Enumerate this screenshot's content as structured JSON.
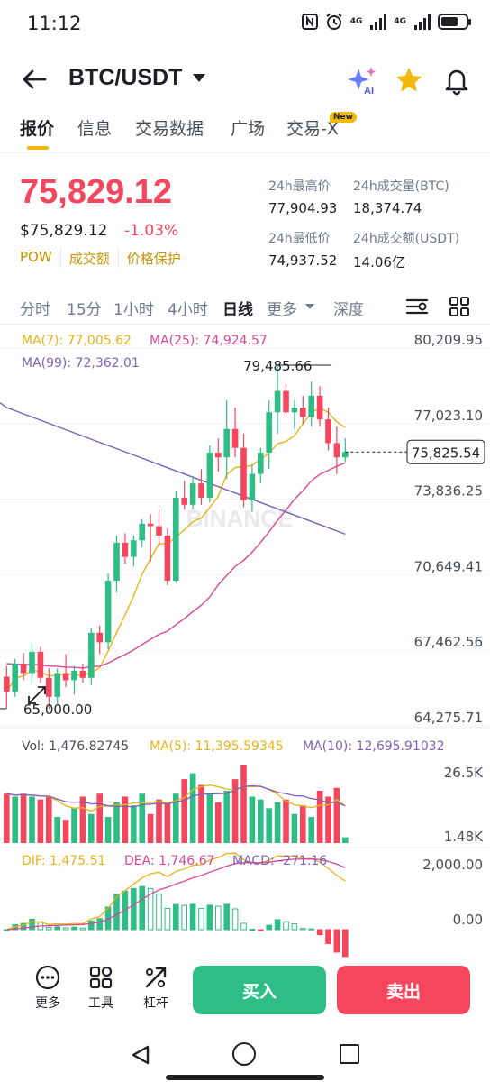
{
  "status_bar": {
    "time": "11:12",
    "signal_1": "4G",
    "signal_2": "4G"
  },
  "header": {
    "pair": "BTC/USDT",
    "ai_label": "AI"
  },
  "tabs": [
    {
      "label": "报价",
      "active": true
    },
    {
      "label": "信息"
    },
    {
      "label": "交易数据"
    },
    {
      "label": "广场"
    },
    {
      "label": "交易-X",
      "badge": "New"
    }
  ],
  "price": {
    "last": "75,829.12",
    "usd": "$75,829.12",
    "change": "-1.03%",
    "tags": [
      "POW",
      "成交额",
      "价格保护"
    ]
  },
  "stats": {
    "high_label": "24h最高价",
    "high_value": "77,904.93",
    "vol_btc_label": "24h成交量(BTC)",
    "vol_btc_value": "18,374.74",
    "low_label": "24h最低价",
    "low_value": "74,937.52",
    "vol_usdt_label": "24h成交额(USDT)",
    "vol_usdt_value": "14.06亿"
  },
  "intervals": [
    {
      "label": "分时"
    },
    {
      "label": "15分"
    },
    {
      "label": "1小时"
    },
    {
      "label": "4小时"
    },
    {
      "label": "日线",
      "active": true
    },
    {
      "label": "更多"
    },
    {
      "label": "深度"
    }
  ],
  "chart_data": {
    "type": "candlestick",
    "watermark": "BINANCE",
    "ma_legend": {
      "ma7": "MA(7): 77,005.62",
      "ma25": "MA(25): 74,924.57",
      "ma99": "MA(99): 72,362.01"
    },
    "y_axis_labels": [
      "80,209.95",
      "77,023.10",
      "73,836.25",
      "70,649.41",
      "67,462.56",
      "64,275.71"
    ],
    "y_axis_values": [
      80209.95,
      77023.1,
      73836.25,
      70649.41,
      67462.56,
      64275.71
    ],
    "current_price_label": "75,825.54",
    "current_price": 75825.54,
    "high_marker": {
      "label": "79,485.66",
      "value": 79485.66
    },
    "low_marker": {
      "label": "65,000.00",
      "value": 65000.0
    },
    "candles": [
      [
        66350,
        66800,
        65000,
        65700
      ],
      [
        65700,
        67100,
        65500,
        66900
      ],
      [
        66900,
        67350,
        66200,
        66500
      ],
      [
        66500,
        67800,
        66000,
        67400
      ],
      [
        67400,
        67600,
        66100,
        66300
      ],
      [
        66300,
        66700,
        65000,
        65500
      ],
      [
        65500,
        66700,
        65200,
        66500
      ],
      [
        66500,
        67300,
        65900,
        66200
      ],
      [
        66200,
        66800,
        65600,
        66600
      ],
      [
        66600,
        66900,
        66100,
        66300
      ],
      [
        66300,
        68400,
        66000,
        68200
      ],
      [
        68200,
        68500,
        67300,
        67800
      ],
      [
        67800,
        70700,
        67500,
        70400
      ],
      [
        70400,
        72300,
        69900,
        72000
      ],
      [
        72000,
        72400,
        71100,
        71400
      ],
      [
        71400,
        72300,
        71000,
        72100
      ],
      [
        72100,
        73000,
        71800,
        72800
      ],
      [
        72800,
        73200,
        71200,
        72700
      ],
      [
        72700,
        73400,
        71900,
        72300
      ],
      [
        72300,
        72600,
        70200,
        70400
      ],
      [
        70400,
        74200,
        70300,
        73900
      ],
      [
        73900,
        74600,
        73400,
        73600
      ],
      [
        73600,
        74800,
        73400,
        74500
      ],
      [
        74500,
        75100,
        73600,
        73900
      ],
      [
        73900,
        76100,
        73700,
        75800
      ],
      [
        75800,
        76400,
        75000,
        75600
      ],
      [
        75600,
        78000,
        74700,
        76800
      ],
      [
        76800,
        77700,
        75600,
        76000
      ],
      [
        76000,
        76600,
        73500,
        73800
      ],
      [
        73800,
        75300,
        73300,
        74900
      ],
      [
        74900,
        76000,
        74500,
        75800
      ],
      [
        75800,
        78000,
        75100,
        77500
      ],
      [
        77500,
        79485.66,
        76600,
        78400
      ],
      [
        78400,
        78700,
        77300,
        77500
      ],
      [
        77500,
        78000,
        76800,
        77700
      ],
      [
        77700,
        78200,
        77000,
        77300
      ],
      [
        77300,
        78800,
        76900,
        78200
      ],
      [
        78200,
        78600,
        76900,
        77200
      ],
      [
        77200,
        77700,
        75900,
        76200
      ],
      [
        76200,
        76900,
        74900,
        75600
      ],
      [
        75600,
        76400,
        75400,
        75825.54
      ]
    ],
    "volume": {
      "legend": {
        "vol": "Vol: 1,476.82745",
        "ma5": "MA(5): 11,395.59345",
        "ma10": "MA(10): 12,695.91032"
      },
      "axis_top": "26.5K",
      "axis_bottom": "1.48K",
      "values": [
        17,
        16,
        17,
        16,
        15,
        16,
        9,
        8,
        12,
        16,
        10,
        17,
        9,
        14,
        16,
        13,
        17,
        10,
        15,
        14,
        17,
        22,
        24,
        20,
        17,
        14,
        18,
        22,
        27,
        16,
        15,
        12,
        14,
        15,
        10,
        13,
        9,
        18,
        16,
        19,
        2
      ]
    },
    "macd": {
      "legend": {
        "dif": "DIF: 1,475.51",
        "dea": "DEA: 1,746.67",
        "macd": "MACD: -271.16"
      },
      "axis_top": "2,000.00",
      "axis_mid": "0.00"
    }
  },
  "bottom": {
    "more": "更多",
    "tools": "工具",
    "leverage": "杠杆",
    "buy": "买入",
    "sell": "卖出"
  },
  "colors": {
    "up": "#2ebd85",
    "down": "#f6465d",
    "ma7": "#e7b418",
    "ma25": "#d9479b",
    "ma99": "#7c62b8",
    "accent": "#f0b90b"
  }
}
